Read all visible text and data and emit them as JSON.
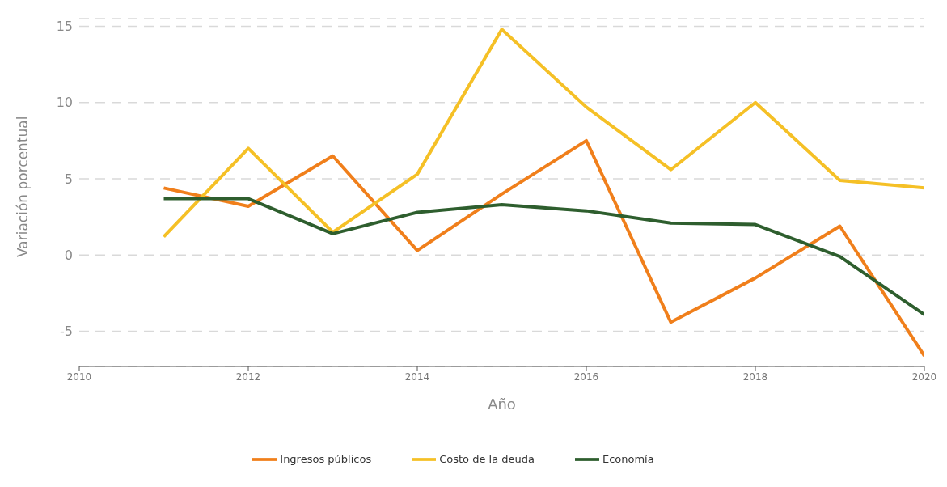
{
  "chart_data": {
    "type": "line",
    "xlabel": "Año",
    "ylabel": "Variación porcentual",
    "x": [
      2011,
      2012,
      2013,
      2014,
      2015,
      2016,
      2017,
      2018,
      2019,
      2020
    ],
    "series": [
      {
        "name": "Ingresos públicos",
        "color": "#f07f1b",
        "values": [
          4.4,
          3.2,
          6.5,
          0.3,
          4.0,
          7.5,
          -4.4,
          -1.5,
          1.9,
          -6.6
        ]
      },
      {
        "name": "Costo de la deuda",
        "color": "#f5c026",
        "values": [
          1.2,
          7.0,
          1.5,
          5.3,
          14.8,
          9.7,
          5.6,
          10.0,
          4.9,
          4.4
        ]
      },
      {
        "name": "Economía",
        "color": "#2e5e2e",
        "values": [
          3.7,
          3.7,
          1.4,
          2.8,
          3.3,
          2.9,
          2.1,
          2.0,
          -0.1,
          -3.9
        ]
      }
    ],
    "xlim": [
      2010,
      2020
    ],
    "xticks": [
      2010,
      2012,
      2014,
      2016,
      2018,
      2020
    ],
    "ylim": [
      -7.3,
      15.5
    ],
    "yticks": [
      -5,
      0,
      5,
      10,
      15
    ],
    "grid": "y",
    "legend": "bottom",
    "marker": "none",
    "line_style": "solid"
  }
}
